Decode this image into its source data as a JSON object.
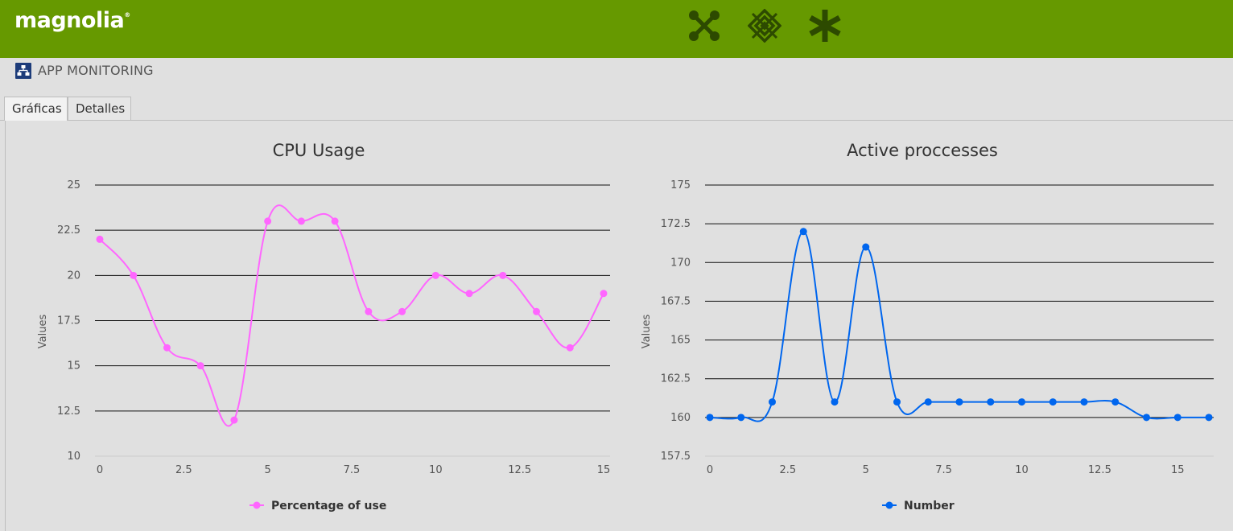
{
  "header": {
    "logo_text": "magnolia",
    "logo_mark": "®",
    "icons": [
      "apps-icon",
      "pulse-icon",
      "favorites-icon"
    ]
  },
  "app": {
    "title": "APP MONITORING",
    "icon": "hierarchy-icon"
  },
  "tabs": [
    {
      "label": "Gráficas",
      "active": true
    },
    {
      "label": "Detalles",
      "active": false
    }
  ],
  "colors": {
    "brand": "#669900",
    "cpu_series": "#ff66ff",
    "proc_series": "#0066ee",
    "app_icon_bg": "#1d3c7a"
  },
  "chart_data": [
    {
      "type": "line",
      "title": "CPU Usage",
      "ylabel": "Values",
      "xlabel": "",
      "ylim": [
        10,
        25
      ],
      "xlim": [
        0,
        15
      ],
      "yticks": [
        "10",
        "12.5",
        "15",
        "17.5",
        "20",
        "22.5",
        "25"
      ],
      "xticks": [
        "0",
        "2.5",
        "5",
        "7.5",
        "10",
        "12.5",
        "15"
      ],
      "grid": true,
      "legend": "bottom-center",
      "series": [
        {
          "name": "Percentage of use",
          "x": [
            0,
            1,
            2,
            3,
            4,
            5,
            6,
            7,
            8,
            9,
            10,
            11,
            12,
            13,
            14,
            15
          ],
          "values": [
            22,
            20,
            16,
            15,
            12,
            23,
            23,
            23,
            18,
            18,
            20,
            19,
            20,
            18,
            16,
            19
          ]
        }
      ]
    },
    {
      "type": "line",
      "title": "Active proccesses",
      "ylabel": "Values",
      "xlabel": "",
      "ylim": [
        157.5,
        175
      ],
      "xlim": [
        0,
        16
      ],
      "yticks": [
        "157.5",
        "160",
        "162.5",
        "165",
        "167.5",
        "170",
        "172.5",
        "175"
      ],
      "xticks": [
        "0",
        "2.5",
        "5",
        "7.5",
        "10",
        "12.5",
        "15"
      ],
      "grid": true,
      "legend": "bottom-center",
      "series": [
        {
          "name": "Number",
          "x": [
            0,
            1,
            2,
            3,
            4,
            5,
            6,
            7,
            8,
            9,
            10,
            11,
            12,
            13,
            14,
            15,
            16
          ],
          "values": [
            160,
            160,
            161,
            172,
            161,
            171,
            161,
            161,
            161,
            161,
            161,
            161,
            161,
            161,
            160,
            160,
            160
          ]
        }
      ]
    }
  ]
}
